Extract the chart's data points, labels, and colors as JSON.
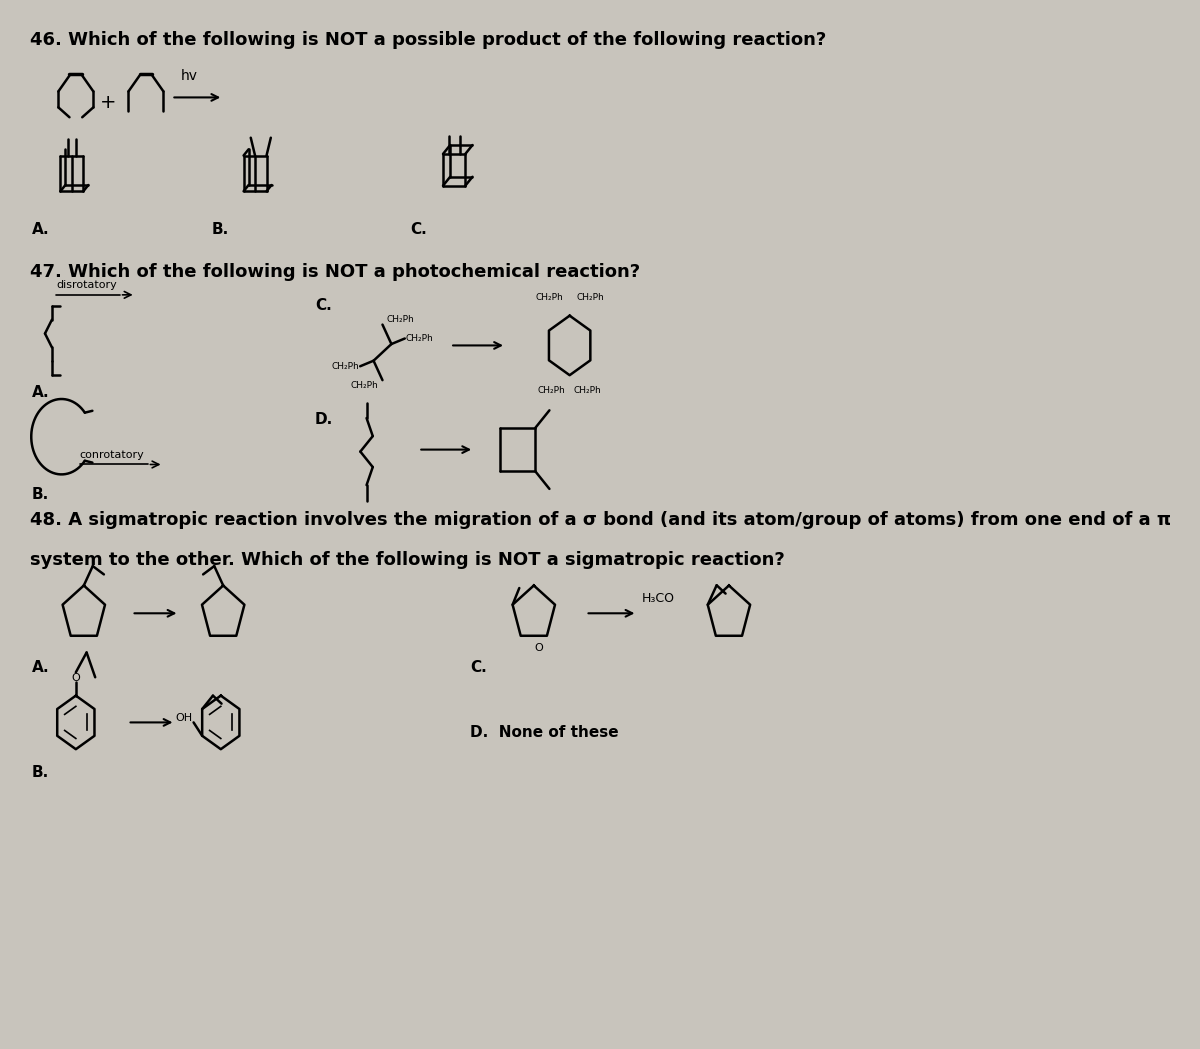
{
  "background_color": "#c8c4bc",
  "text_color": "#000000",
  "q46_title": "46. Which of the following is NOT a possible product of the following reaction?",
  "q47_title": "47. Which of the following is NOT a photochemical reaction?",
  "q48_line1": "48. A sigmatropic reaction involves the migration of a σ bond (and its atom/group of atoms) from one end of a π",
  "q48_line2": "system to the other. Which of the following is NOT a sigmatropic reaction?",
  "hv_label": "hv",
  "disrotatory": "disrotatory",
  "conrotatory": "conrotatory",
  "H3CO_label": "H₃CO",
  "none_of_these": "D.  None of these",
  "lw": 1.8
}
